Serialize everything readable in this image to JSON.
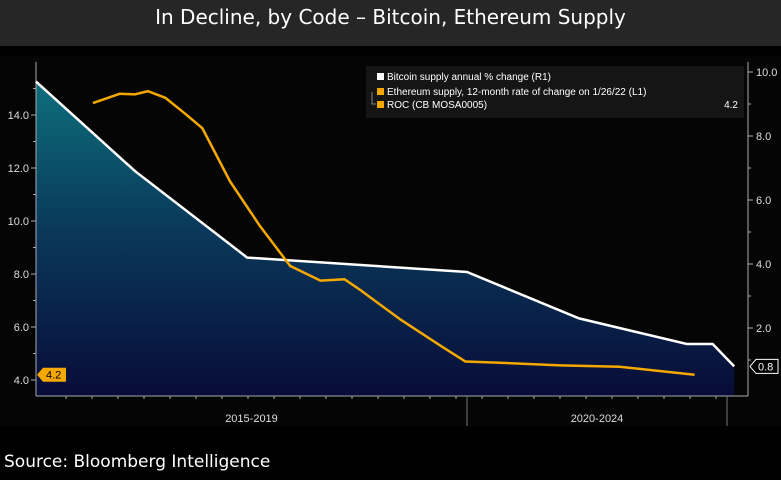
{
  "chart_data": {
    "type": "line",
    "title": "In Decline, by Code – Bitcoin, Ethereum Supply",
    "source": "Source: Bloomberg Intelligence",
    "x_period_labels": [
      "2015-2019",
      "2020-2024"
    ],
    "left_axis": {
      "ticks": [
        "4.0",
        "6.0",
        "8.0",
        "10.0",
        "12.0",
        "14.0"
      ],
      "range": [
        3.55,
        15.3
      ]
    },
    "right_axis": {
      "ticks": [
        "2.0",
        "4.0",
        "6.0",
        "8.0",
        "10.0"
      ],
      "range": [
        0,
        10.0
      ]
    },
    "grid": false,
    "legend_position": "top-right",
    "series": [
      {
        "name": "Bitcoin supply annual % change (R1)",
        "axis": "right",
        "color": "#ffffff",
        "area": true,
        "x": [
          2015.0,
          2016.15,
          2017.45,
          2020.0,
          2021.3,
          2022.55,
          2022.85,
          2023.1
        ],
        "y": [
          9.7,
          6.9,
          4.2,
          3.75,
          2.3,
          1.5,
          1.5,
          0.8
        ],
        "last_value_label": "0.8"
      },
      {
        "name": "Ethereum supply, 12-month rate of change on 1/26/22 (L1)",
        "axis": "left",
        "color": "#f5a800",
        "x": [
          2015.66,
          2015.97,
          2016.15,
          2016.3,
          2016.5,
          2016.73,
          2016.93,
          2017.25,
          2017.6,
          2017.95,
          2018.3,
          2018.58,
          2018.76,
          2019.22,
          2019.69,
          2019.98,
          2020.38,
          2021.08,
          2021.77,
          2022.64
        ],
        "y": [
          14.45,
          14.8,
          14.78,
          14.9,
          14.65,
          14.05,
          13.5,
          11.5,
          9.8,
          8.3,
          7.75,
          7.8,
          7.4,
          6.3,
          5.3,
          4.7,
          4.65,
          4.55,
          4.5,
          4.2
        ],
        "last_value_label": "4.2"
      },
      {
        "name": "ROC (CB MOSA0005)",
        "color": "#f5a800",
        "legend_value": "4.2"
      }
    ]
  }
}
